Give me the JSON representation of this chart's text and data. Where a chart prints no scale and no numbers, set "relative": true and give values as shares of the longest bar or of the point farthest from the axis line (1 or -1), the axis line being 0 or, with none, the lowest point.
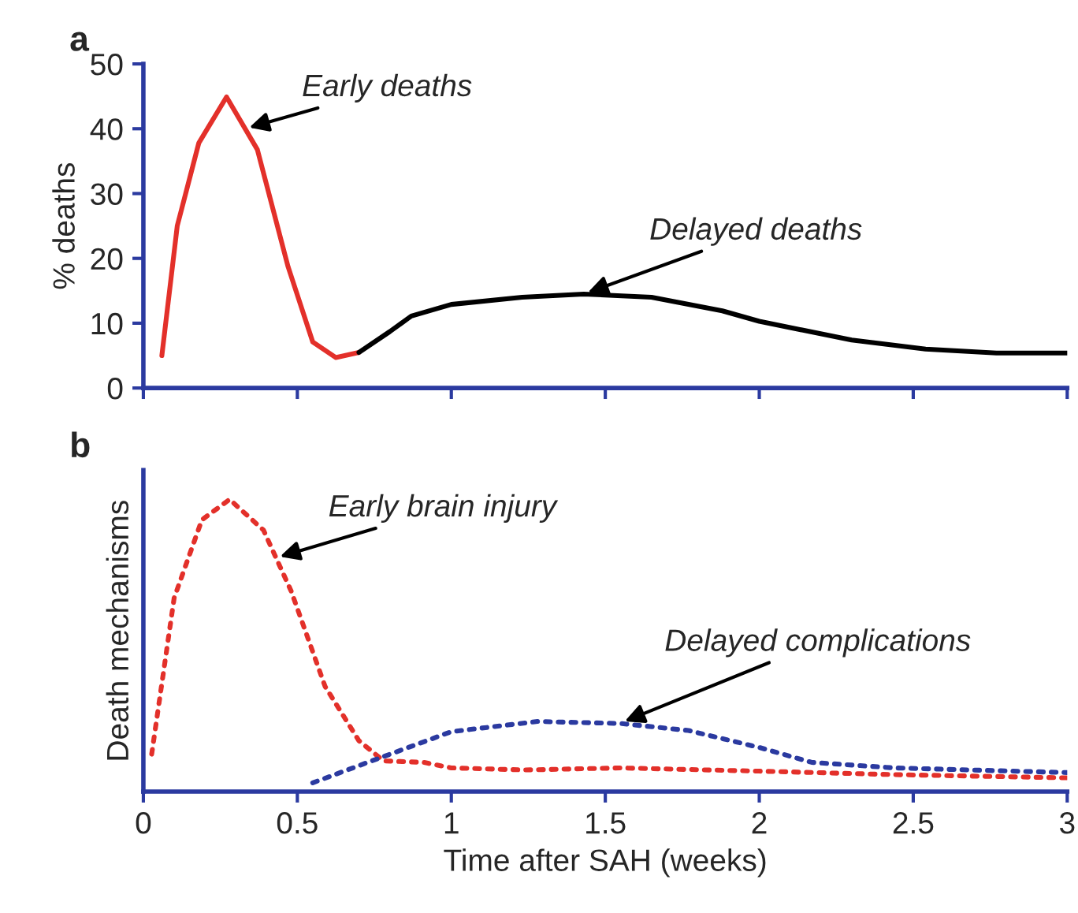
{
  "chart_data": [
    {
      "type": "line",
      "title": "a",
      "ylabel": "% deaths",
      "xlim": [
        0,
        3
      ],
      "xticks": [
        {
          "value": 0,
          "label": null
        },
        {
          "value": 0.5,
          "label": null
        },
        {
          "value": 1,
          "label": null
        },
        {
          "value": 1.5,
          "label": null
        },
        {
          "value": 2,
          "label": null
        },
        {
          "value": 2.5,
          "label": null
        },
        {
          "value": 3,
          "label": null
        }
      ],
      "ylim": [
        0,
        50
      ],
      "yticks": [
        0,
        10,
        20,
        30,
        40,
        50
      ],
      "tick_labels": "y",
      "grid": false,
      "legend": false,
      "line_style": "solid",
      "marker": "none",
      "series": [
        {
          "color": "#e3302a",
          "x": [
            0.06,
            0.11,
            0.18,
            0.27,
            0.37,
            0.47,
            0.55,
            0.625,
            0.7
          ],
          "values": [
            5,
            25,
            37.8,
            44.9,
            36.8,
            18.7,
            7.1,
            4.7,
            5.5
          ]
        },
        {
          "color": "#000000",
          "x": [
            0.7,
            0.8,
            0.87,
            1.0,
            1.23,
            1.43,
            1.65,
            1.88,
            2.0,
            2.3,
            2.54,
            2.77,
            3.0
          ],
          "values": [
            5.5,
            8.7,
            11.1,
            12.9,
            14,
            14.5,
            14,
            11.9,
            10.3,
            7.4,
            6.0,
            5.4,
            5.4
          ]
        }
      ],
      "annotations": [
        {
          "text": "Early deaths",
          "x": 0.33,
          "y": 40
        },
        {
          "text": "Delayed deaths",
          "x": 1.43,
          "y": 14.5
        }
      ]
    },
    {
      "type": "line",
      "title": "b",
      "xlabel": "Time after SAH (weeks)",
      "ylabel": "Death mechanisms",
      "relative": true,
      "xlim": [
        0,
        3
      ],
      "xticks": [
        0,
        0.5,
        1,
        1.5,
        2,
        2.5,
        3
      ],
      "tick_labels": "x",
      "grid": false,
      "legend": false,
      "line_style": "dotted",
      "marker": "none",
      "series": [
        {
          "color": "#e3302a",
          "x": [
            0.027,
            0.1,
            0.19,
            0.28,
            0.39,
            0.48,
            0.59,
            0.7,
            0.78,
            0.91,
            1.0,
            1.24,
            1.55,
            2.0,
            2.44,
            3.0
          ],
          "values": [
            0.128,
            0.663,
            0.93,
            1.0,
            0.895,
            0.686,
            0.36,
            0.174,
            0.105,
            0.1,
            0.081,
            0.074,
            0.081,
            0.07,
            0.058,
            0.047
          ]
        },
        {
          "color": "#2b3aa0",
          "x": [
            0.55,
            0.77,
            1.0,
            1.28,
            1.55,
            1.77,
            2.0,
            2.17,
            2.44,
            3.0
          ],
          "values": [
            0.03,
            0.116,
            0.205,
            0.24,
            0.233,
            0.209,
            0.151,
            0.1,
            0.081,
            0.065
          ]
        }
      ],
      "annotations": [
        {
          "text": "Early brain injury",
          "x": 0.43,
          "y": 0.8
        },
        {
          "text": "Delayed complications",
          "x": 1.55,
          "y": 0.235
        }
      ]
    }
  ]
}
